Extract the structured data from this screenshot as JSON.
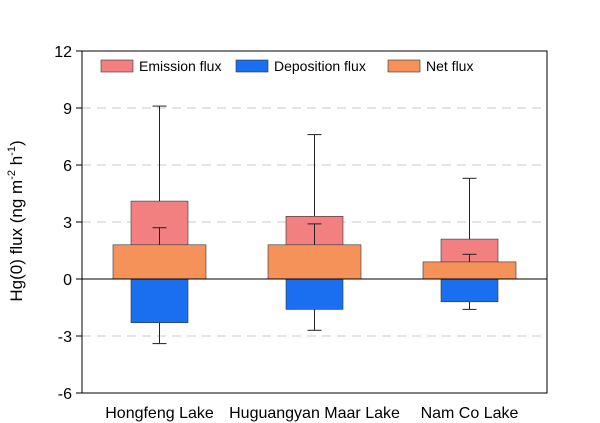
{
  "chart_data": {
    "type": "bar",
    "ylabel": {
      "base": "Hg(0) flux (ng m",
      "sup1": "-2",
      "mid": " h",
      "sup2": "-1",
      "end": ")"
    },
    "ylim": [
      -6,
      12
    ],
    "yticks": [
      -6,
      -3,
      0,
      3,
      6,
      9,
      12
    ],
    "grid": "horizontal-dashed",
    "legend_position": "top",
    "categories": [
      "Hongfeng Lake",
      "Huguangyan Maar Lake",
      "Nam Co Lake"
    ],
    "series": [
      {
        "name": "Emission flux",
        "color": "#f28080",
        "values": [
          4.1,
          3.3,
          2.1
        ],
        "error_upper": [
          9.1,
          7.6,
          5.3
        ]
      },
      {
        "name": "Deposition flux",
        "color": "#1a6ff0",
        "values": [
          -2.3,
          -1.6,
          -1.2
        ],
        "error_lower": [
          -3.4,
          -2.7,
          -1.6
        ]
      },
      {
        "name": "Net flux",
        "color": "#f5925a",
        "values": [
          1.8,
          1.8,
          0.9
        ],
        "error_upper": [
          2.7,
          2.9,
          1.3
        ]
      }
    ]
  }
}
